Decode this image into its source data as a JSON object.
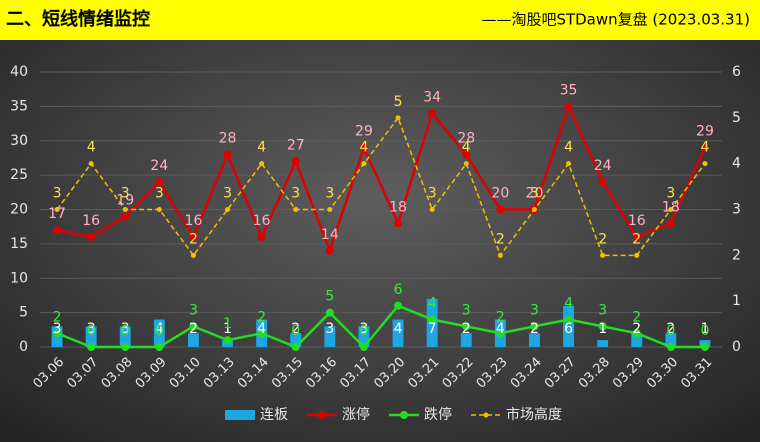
{
  "chart_data": {
    "type": "combo",
    "title": "二、短线情绪监控",
    "subtitle": "——淘股吧STDawn复盘 (2023.03.31)",
    "categories": [
      "03.06",
      "03.07",
      "03.08",
      "03.09",
      "03.10",
      "03.13",
      "03.14",
      "03.15",
      "03.16",
      "03.17",
      "03.20",
      "03.21",
      "03.22",
      "03.23",
      "03.24",
      "03.27",
      "03.28",
      "03.29",
      "03.30",
      "03.31"
    ],
    "series": [
      {
        "name": "连板",
        "type": "bar",
        "color": "#1ea6e2",
        "label_color": "#ffffff",
        "values": [
          3,
          3,
          3,
          4,
          2,
          1,
          4,
          2,
          3,
          3,
          4,
          7,
          2,
          4,
          2,
          6,
          1,
          2,
          2,
          1
        ]
      },
      {
        "name": "涨停",
        "type": "line",
        "color": "#e00000",
        "label_color": "#ffb3c1",
        "values": [
          17,
          16,
          19,
          24,
          16,
          28,
          16,
          27,
          14,
          29,
          18,
          34,
          28,
          20,
          20,
          35,
          24,
          16,
          18,
          29
        ]
      },
      {
        "name": "跌停",
        "type": "line",
        "color": "#22dd22",
        "label_color": "#33ee33",
        "values": [
          2,
          0,
          0,
          0,
          3,
          1,
          2,
          0,
          5,
          0,
          6,
          4,
          3,
          2,
          3,
          4,
          3,
          2,
          0,
          0
        ]
      },
      {
        "name": "市场高度",
        "type": "line",
        "color": "#f2c200",
        "label_color": "#ffe14d",
        "dashed": true,
        "axis": "y2",
        "values": [
          3,
          4,
          3,
          3,
          2,
          3,
          4,
          3,
          3,
          4,
          5,
          3,
          4,
          2,
          3,
          4,
          2,
          2,
          3,
          4
        ]
      }
    ],
    "ylim": [
      0,
      40
    ],
    "yticks": [
      0,
      5,
      10,
      15,
      20,
      25,
      30,
      35,
      40
    ],
    "y2lim": [
      0,
      6
    ],
    "y2ticks": [
      0,
      1,
      2,
      3,
      4,
      5,
      6
    ],
    "grid": true,
    "legend": "bottom"
  }
}
